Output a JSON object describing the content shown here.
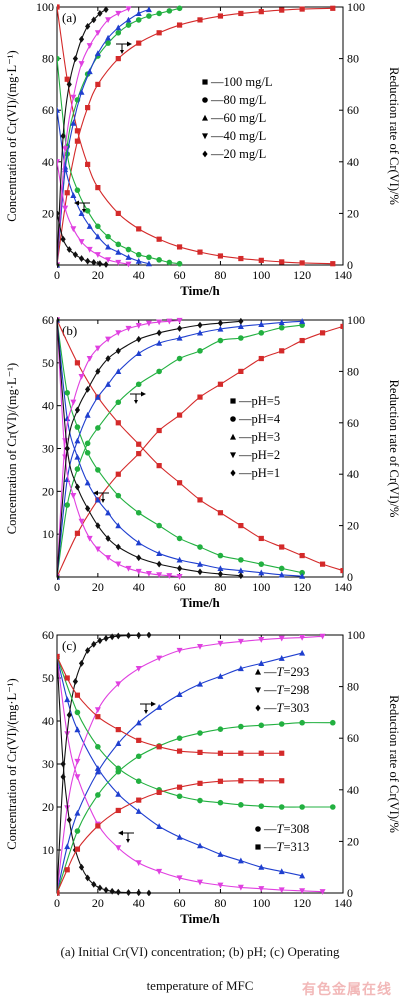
{
  "chart_data": [
    {
      "type": "line",
      "panel_label": "(a)",
      "xlabel": "Time/h",
      "ylabel_left": "Concentration of Cr(VI)/(mg·L⁻¹)",
      "ylabel_right": "Reduction rate of Cr(VI)/%",
      "xlim": [
        0,
        140
      ],
      "ylim_left": [
        0,
        100
      ],
      "ylim_right": [
        0,
        100
      ],
      "x_ticks": [
        0,
        20,
        40,
        60,
        80,
        100,
        120,
        140
      ],
      "y_ticks_left": [
        20,
        40,
        60,
        80,
        100
      ],
      "y_ticks_right": [
        0,
        20,
        40,
        60,
        80,
        100
      ],
      "legend_position": "center-right",
      "series": [
        {
          "name": "—100 mg/L",
          "color": "#d42a2a",
          "marker": "square",
          "concentration_x": [
            0,
            5,
            10,
            15,
            20,
            30,
            40,
            50,
            60,
            70,
            80,
            90,
            100,
            110,
            120,
            135
          ],
          "concentration_y": [
            100,
            72,
            52,
            39,
            30,
            20,
            14,
            10,
            7,
            5,
            3.5,
            2.5,
            1.8,
            1.2,
            0.8,
            0.5
          ],
          "reduction_x": [
            0,
            5,
            10,
            15,
            20,
            30,
            40,
            50,
            60,
            70,
            80,
            90,
            100,
            110,
            120,
            135
          ],
          "reduction_y": [
            0,
            28,
            48,
            61,
            70,
            80,
            86,
            90,
            93,
            95,
            96.5,
            97.5,
            98.2,
            98.8,
            99.2,
            99.5
          ]
        },
        {
          "name": "—80 mg/L",
          "color": "#22b040",
          "marker": "circle",
          "concentration_x": [
            0,
            5,
            10,
            15,
            20,
            25,
            30,
            35,
            40,
            45,
            50,
            55,
            60
          ],
          "concentration_y": [
            80,
            43,
            29,
            21,
            15,
            11,
            8,
            6,
            4,
            3,
            2,
            1,
            0.5
          ],
          "reduction_x": [
            0,
            5,
            10,
            15,
            20,
            25,
            30,
            35,
            40,
            45,
            50,
            55,
            60
          ],
          "reduction_y": [
            0,
            46,
            64,
            74,
            81,
            86,
            90,
            93,
            95,
            96.5,
            97.5,
            98.5,
            99.5
          ]
        },
        {
          "name": "—60 mg/L",
          "color": "#1f3fcf",
          "marker": "triangle-up",
          "concentration_x": [
            0,
            4,
            8,
            12,
            16,
            20,
            25,
            30,
            35,
            40,
            45
          ],
          "concentration_y": [
            60,
            38,
            27,
            20,
            15,
            11,
            7,
            5,
            3,
            1.5,
            0.5
          ],
          "reduction_x": [
            0,
            4,
            8,
            12,
            16,
            20,
            25,
            30,
            35,
            40,
            45
          ],
          "reduction_y": [
            0,
            37,
            55,
            67,
            75,
            82,
            88,
            92,
            95,
            97.5,
            99
          ]
        },
        {
          "name": "—40 mg/L",
          "color": "#e040e0",
          "marker": "triangle-down",
          "concentration_x": [
            0,
            4,
            8,
            12,
            16,
            20,
            25,
            30,
            35
          ],
          "concentration_y": [
            40,
            22,
            14,
            9,
            6,
            4,
            2,
            1,
            0.3
          ],
          "reduction_x": [
            0,
            4,
            8,
            12,
            16,
            20,
            25,
            30,
            35
          ],
          "reduction_y": [
            0,
            45,
            65,
            78,
            85,
            90,
            95,
            97.5,
            99.3
          ]
        },
        {
          "name": "—20 mg/L",
          "color": "#111111",
          "marker": "diamond",
          "concentration_x": [
            0,
            3,
            6,
            9,
            12,
            15,
            18,
            21,
            24
          ],
          "concentration_y": [
            20,
            10,
            6,
            4,
            2.5,
            1.5,
            1,
            0.5,
            0.2
          ],
          "reduction_x": [
            0,
            3,
            6,
            9,
            12,
            15,
            18,
            21,
            24
          ],
          "reduction_y": [
            0,
            50,
            70,
            80,
            87.5,
            92.5,
            95,
            97.5,
            99
          ]
        }
      ]
    },
    {
      "type": "line",
      "panel_label": "(b)",
      "xlabel": "Time/h",
      "ylabel_left": "Concentration of Cr(VI)/(mg·L⁻¹)",
      "ylabel_right": "Reduction rate of Cr(VI)/%",
      "xlim": [
        0,
        140
      ],
      "ylim_left": [
        0,
        60
      ],
      "ylim_right": [
        0,
        100
      ],
      "x_ticks": [
        0,
        20,
        40,
        60,
        80,
        100,
        120,
        140
      ],
      "y_ticks_left": [
        10,
        20,
        30,
        40,
        50,
        60
      ],
      "y_ticks_right": [
        0,
        20,
        40,
        60,
        80,
        100
      ],
      "legend_position": "center-right",
      "series": [
        {
          "name": "—pH=5",
          "color": "#d42a2a",
          "marker": "square",
          "concentration_x": [
            0,
            10,
            20,
            30,
            40,
            50,
            60,
            70,
            80,
            90,
            100,
            110,
            120,
            130,
            140
          ],
          "concentration_y": [
            60,
            50,
            42,
            36,
            31,
            26,
            22,
            18,
            15,
            12,
            9,
            7,
            5,
            3,
            1.5
          ],
          "reduction_x": [
            0,
            10,
            20,
            30,
            40,
            50,
            60,
            70,
            80,
            90,
            100,
            110,
            120,
            130,
            140
          ],
          "reduction_y": [
            0,
            17,
            30,
            40,
            48,
            57,
            63,
            70,
            75,
            80,
            85,
            88,
            92,
            95,
            97.5
          ]
        },
        {
          "name": "—pH=4",
          "color": "#22b040",
          "marker": "circle",
          "concentration_x": [
            0,
            5,
            10,
            15,
            20,
            30,
            40,
            50,
            60,
            70,
            80,
            90,
            100,
            110,
            120
          ],
          "concentration_y": [
            60,
            43,
            35,
            29,
            25,
            19,
            15,
            12,
            9,
            7,
            5,
            4,
            3,
            2,
            1
          ],
          "reduction_x": [
            0,
            5,
            10,
            15,
            20,
            30,
            40,
            50,
            60,
            70,
            80,
            90,
            100,
            110,
            120
          ],
          "reduction_y": [
            0,
            28,
            42,
            52,
            58,
            68,
            75,
            80,
            85,
            88,
            92,
            93,
            95,
            97,
            98
          ]
        },
        {
          "name": "—pH=3",
          "color": "#1f3fcf",
          "marker": "triangle-up",
          "concentration_x": [
            0,
            5,
            10,
            15,
            20,
            25,
            30,
            40,
            50,
            60,
            70,
            80,
            90,
            100,
            110,
            120
          ],
          "concentration_y": [
            60,
            37,
            28,
            22,
            18,
            15,
            12,
            8,
            5.5,
            4,
            3,
            2,
            1.5,
            1,
            0.5,
            0.2
          ],
          "reduction_x": [
            0,
            5,
            10,
            15,
            20,
            25,
            30,
            40,
            50,
            60,
            70,
            80,
            90,
            100,
            110,
            120
          ],
          "reduction_y": [
            0,
            38,
            53,
            63,
            70,
            75,
            80,
            87,
            91,
            93,
            95,
            96.5,
            97.5,
            98.3,
            99,
            99.5
          ]
        },
        {
          "name": "—pH=2",
          "color": "#e040e0",
          "marker": "triangle-down",
          "concentration_x": [
            0,
            4,
            8,
            12,
            16,
            20,
            25,
            30,
            35,
            40,
            45,
            50,
            55,
            60
          ],
          "concentration_y": [
            60,
            28,
            19,
            13,
            9,
            6.5,
            4.5,
            3,
            2,
            1.3,
            0.8,
            0.5,
            0.3,
            0.1
          ],
          "reduction_x": [
            0,
            4,
            8,
            12,
            16,
            20,
            25,
            30,
            35,
            40,
            45,
            50,
            55,
            60
          ],
          "reduction_y": [
            0,
            53,
            68,
            78,
            85,
            89,
            92.5,
            95,
            96.7,
            97.8,
            98.7,
            99.2,
            99.5,
            99.8
          ]
        },
        {
          "name": "—pH=1",
          "color": "#111111",
          "marker": "diamond",
          "concentration_x": [
            0,
            5,
            10,
            15,
            20,
            25,
            30,
            40,
            50,
            60,
            70,
            80,
            90
          ],
          "concentration_y": [
            60,
            30,
            21,
            16,
            12,
            9,
            7,
            4.5,
            3,
            2,
            1.2,
            0.7,
            0.3
          ],
          "reduction_x": [
            0,
            5,
            10,
            15,
            20,
            25,
            30,
            40,
            50,
            60,
            70,
            80,
            90
          ],
          "reduction_y": [
            0,
            50,
            65,
            73,
            80,
            85,
            88,
            92.5,
            95,
            96.7,
            98,
            98.8,
            99.5
          ]
        }
      ]
    },
    {
      "type": "line",
      "panel_label": "(c)",
      "xlabel": "Time/h",
      "ylabel_left": "Concentration of Cr(VI)/(mg·L⁻¹)",
      "ylabel_right": "Reduction rate of Cr(VI)/%",
      "xlim": [
        0,
        140
      ],
      "ylim_left": [
        0,
        60
      ],
      "ylim_right": [
        0,
        100
      ],
      "x_ticks": [
        0,
        20,
        40,
        60,
        80,
        100,
        120,
        140
      ],
      "y_ticks_left": [
        10,
        20,
        30,
        40,
        50,
        60
      ],
      "y_ticks_right": [
        0,
        20,
        40,
        60,
        80,
        100
      ],
      "legend_position": "right",
      "series": [
        {
          "name": "T=293",
          "color": "#1f3fcf",
          "marker": "triangle-up",
          "concentration_x": [
            0,
            5,
            10,
            20,
            30,
            40,
            50,
            60,
            70,
            80,
            90,
            100,
            110,
            120
          ],
          "concentration_y": [
            55,
            45,
            38,
            29,
            23,
            19,
            15.5,
            13,
            11,
            9,
            7.5,
            6,
            5,
            4
          ],
          "reduction_x": [
            0,
            5,
            10,
            20,
            30,
            40,
            50,
            60,
            70,
            80,
            90,
            100,
            110,
            120
          ],
          "reduction_y": [
            0,
            18,
            31,
            47,
            58,
            66,
            72,
            77,
            81,
            84,
            87,
            89,
            91,
            93
          ]
        },
        {
          "name": "T=298",
          "color": "#e040e0",
          "marker": "triangle-down",
          "concentration_x": [
            0,
            5,
            10,
            20,
            30,
            40,
            50,
            60,
            70,
            80,
            90,
            100,
            110,
            120,
            130
          ],
          "concentration_y": [
            55,
            37,
            27,
            16,
            10.5,
            7,
            5,
            3.5,
            2.5,
            1.8,
            1.3,
            1,
            0.7,
            0.5,
            0.3
          ],
          "reduction_x": [
            0,
            5,
            10,
            20,
            30,
            40,
            50,
            60,
            70,
            80,
            90,
            100,
            110,
            120,
            130
          ],
          "reduction_y": [
            0,
            33,
            51,
            71,
            81,
            87,
            91,
            94,
            95.5,
            96.7,
            97.5,
            98.2,
            98.7,
            99,
            99.5
          ]
        },
        {
          "name": "T=303",
          "color": "#111111",
          "marker": "diamond",
          "concentration_x": [
            0,
            3,
            6,
            9,
            12,
            15,
            18,
            21,
            24,
            27,
            30,
            35,
            40,
            45
          ],
          "concentration_y": [
            55,
            30,
            17,
            10,
            6,
            3.5,
            2,
            1.2,
            0.7,
            0.4,
            0.2,
            0.1,
            0.05,
            0
          ],
          "reduction_x": [
            0,
            3,
            6,
            9,
            12,
            15,
            18,
            21,
            24,
            27,
            30,
            35,
            40,
            45
          ],
          "reduction_y": [
            0,
            45,
            69,
            82,
            89,
            94,
            96.4,
            97.8,
            98.7,
            99.3,
            99.6,
            99.8,
            99.9,
            100
          ]
        },
        {
          "name": "T=308",
          "color": "#22b040",
          "marker": "circle",
          "concentration_x": [
            0,
            10,
            20,
            30,
            40,
            50,
            60,
            70,
            80,
            90,
            100,
            110,
            120,
            135
          ],
          "concentration_y": [
            55,
            42,
            34,
            29,
            26,
            24,
            22.5,
            21.5,
            21,
            20.5,
            20.2,
            20,
            20,
            20
          ],
          "reduction_x": [
            0,
            10,
            20,
            30,
            40,
            50,
            60,
            70,
            80,
            90,
            100,
            110,
            120,
            135
          ],
          "reduction_y": [
            0,
            24,
            38,
            47,
            53,
            57,
            60,
            62,
            63.5,
            64.5,
            65,
            65.5,
            66,
            66
          ]
        },
        {
          "name": "T=313",
          "color": "#d42a2a",
          "marker": "square",
          "concentration_x": [
            0,
            5,
            10,
            20,
            30,
            40,
            50,
            60,
            70,
            80,
            90,
            100,
            110
          ],
          "concentration_y": [
            55,
            50,
            46,
            41,
            38,
            35.5,
            34,
            33,
            32.7,
            32.5,
            32.5,
            32.5,
            32.5
          ],
          "reduction_x": [
            0,
            5,
            10,
            20,
            30,
            40,
            50,
            60,
            70,
            80,
            90,
            100,
            110
          ],
          "reduction_y": [
            0,
            9,
            17,
            26,
            32,
            36,
            39,
            41,
            42.5,
            43.3,
            43.5,
            43.5,
            43.5
          ]
        }
      ]
    }
  ],
  "caption": {
    "line1": "(a) Initial Cr(VI) concentration; (b) pH; (c) Operating",
    "line2": "temperature of MFC"
  },
  "watermark": "有色金属在线"
}
